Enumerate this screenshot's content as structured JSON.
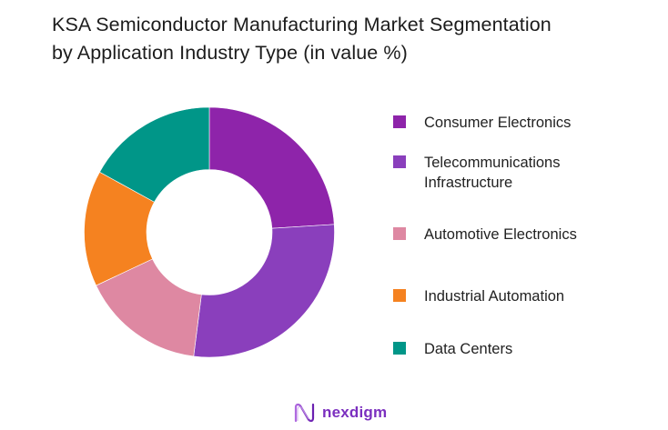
{
  "title": {
    "line1": "KSA Semiconductor Manufacturing Market Segmentation",
    "line2": "by Application Industry Type (in value %)"
  },
  "chart_data": {
    "type": "pie",
    "subtype": "donut",
    "title": "KSA Semiconductor Manufacturing Market Segmentation by Application Industry Type (in value %)",
    "categories": [
      "Consumer Electronics",
      "Telecommunications Infrastructure",
      "Automotive Electronics",
      "Industrial Automation",
      "Data Centers"
    ],
    "values": [
      24,
      28,
      16,
      15,
      17
    ],
    "colors": [
      "#8E24AA",
      "#8A3FBC",
      "#DE88A2",
      "#F58220",
      "#009688"
    ],
    "unit": "%",
    "legend_position": "right",
    "start_angle": "12 o'clock, clockwise"
  },
  "legend": {
    "items": [
      {
        "label": "Consumer Electronics",
        "color": "#8E24AA"
      },
      {
        "label": "Telecommunications Infrastructure",
        "color": "#8A3FBC"
      },
      {
        "label": "Automotive Electronics",
        "color": "#DE88A2"
      },
      {
        "label": "Industrial Automation",
        "color": "#F58220"
      },
      {
        "label": "Data Centers",
        "color": "#009688"
      }
    ]
  },
  "footer": {
    "brand": "nexdigm",
    "brand_color": "#7B2FBF",
    "logo_icon": "wave-n-logo"
  }
}
